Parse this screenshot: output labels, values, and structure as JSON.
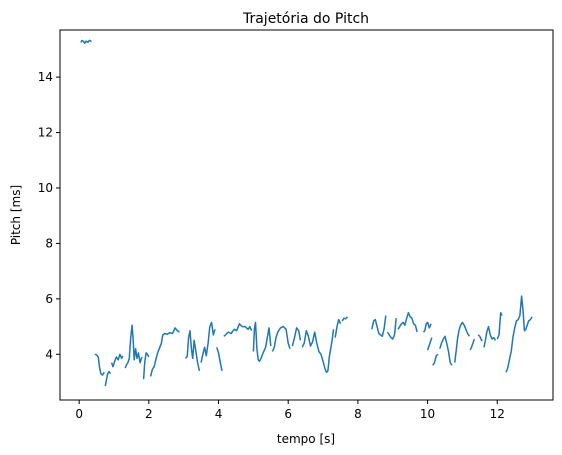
{
  "chart_data": {
    "type": "line",
    "title": "Trajetória do Pitch",
    "xlabel": "tempo [s]",
    "ylabel": "Pitch [ms]",
    "xlim": [
      -0.55,
      13.6
    ],
    "ylim": [
      2.35,
      15.7
    ],
    "xticks": [
      0,
      2,
      4,
      6,
      8,
      10,
      12
    ],
    "yticks": [
      4,
      6,
      8,
      10,
      12,
      14
    ],
    "grid": false,
    "line_color": "#1f77b4",
    "segments": [
      [
        [
          0.05,
          15.25
        ],
        [
          0.08,
          15.32
        ],
        [
          0.12,
          15.3
        ],
        [
          0.16,
          15.22
        ],
        [
          0.2,
          15.3
        ],
        [
          0.25,
          15.26
        ],
        [
          0.3,
          15.33
        ],
        [
          0.35,
          15.28
        ]
      ],
      [
        [
          0.45,
          4.0
        ],
        [
          0.5,
          3.98
        ],
        [
          0.55,
          3.9
        ],
        [
          0.58,
          3.55
        ],
        [
          0.62,
          3.3
        ],
        [
          0.67,
          3.25
        ],
        [
          0.72,
          3.35
        ]
      ],
      [
        [
          0.75,
          2.85
        ],
        [
          0.78,
          3.05
        ],
        [
          0.82,
          3.3
        ],
        [
          0.86,
          3.38
        ],
        [
          0.9,
          3.3
        ]
      ],
      [
        [
          0.93,
          3.7
        ],
        [
          0.97,
          3.55
        ],
        [
          1.02,
          3.75
        ],
        [
          1.07,
          3.9
        ],
        [
          1.12,
          3.8
        ],
        [
          1.17,
          4.0
        ],
        [
          1.22,
          3.85
        ],
        [
          1.25,
          3.95
        ]
      ],
      [
        [
          1.32,
          3.5
        ],
        [
          1.36,
          3.62
        ],
        [
          1.4,
          3.7
        ],
        [
          1.44,
          3.85
        ],
        [
          1.48,
          4.6
        ],
        [
          1.52,
          5.05
        ],
        [
          1.55,
          4.5
        ],
        [
          1.58,
          3.8
        ],
        [
          1.62,
          4.2
        ],
        [
          1.66,
          3.85
        ],
        [
          1.7,
          4.05
        ],
        [
          1.75,
          3.7
        ],
        [
          1.8,
          3.9
        ]
      ],
      [
        [
          1.85,
          3.1
        ],
        [
          1.88,
          3.7
        ],
        [
          1.92,
          4.05
        ],
        [
          1.96,
          4.0
        ],
        [
          2.0,
          3.9
        ]
      ],
      [
        [
          2.05,
          3.2
        ],
        [
          2.1,
          3.45
        ],
        [
          2.15,
          3.55
        ],
        [
          2.2,
          3.8
        ],
        [
          2.25,
          4.05
        ],
        [
          2.3,
          4.2
        ],
        [
          2.36,
          4.4
        ],
        [
          2.4,
          4.7
        ],
        [
          2.46,
          4.75
        ],
        [
          2.52,
          4.72
        ],
        [
          2.6,
          4.78
        ],
        [
          2.68,
          4.75
        ],
        [
          2.75,
          4.95
        ],
        [
          2.82,
          4.85
        ],
        [
          2.88,
          4.8
        ]
      ],
      [
        [
          3.05,
          3.85
        ],
        [
          3.1,
          3.92
        ],
        [
          3.14,
          4.6
        ],
        [
          3.18,
          4.85
        ],
        [
          3.22,
          4.2
        ],
        [
          3.26,
          3.85
        ],
        [
          3.3,
          4.5
        ],
        [
          3.35,
          4.1
        ],
        [
          3.4,
          3.7
        ],
        [
          3.45,
          3.4
        ]
      ],
      [
        [
          3.5,
          3.7
        ],
        [
          3.55,
          4.0
        ],
        [
          3.6,
          4.25
        ],
        [
          3.65,
          3.95
        ],
        [
          3.7,
          4.4
        ],
        [
          3.75,
          5.0
        ],
        [
          3.8,
          5.15
        ],
        [
          3.85,
          4.7
        ],
        [
          3.9,
          4.9
        ]
      ],
      [
        [
          3.95,
          4.25
        ],
        [
          4.0,
          4.05
        ],
        [
          4.05,
          3.7
        ],
        [
          4.1,
          3.4
        ]
      ],
      [
        [
          4.15,
          4.65
        ],
        [
          4.2,
          4.7
        ],
        [
          4.28,
          4.8
        ],
        [
          4.36,
          4.75
        ],
        [
          4.45,
          4.9
        ],
        [
          4.52,
          4.85
        ],
        [
          4.6,
          5.1
        ],
        [
          4.68,
          5.0
        ],
        [
          4.76,
          5.0
        ],
        [
          4.85,
          4.9
        ],
        [
          4.9,
          5.0
        ],
        [
          4.95,
          4.85
        ]
      ],
      [
        [
          5.0,
          4.1
        ],
        [
          5.03,
          4.9
        ],
        [
          5.06,
          5.15
        ],
        [
          5.1,
          4.2
        ],
        [
          5.14,
          3.8
        ],
        [
          5.18,
          3.75
        ],
        [
          5.22,
          3.85
        ],
        [
          5.28,
          4.05
        ],
        [
          5.35,
          4.25
        ],
        [
          5.4,
          4.6
        ],
        [
          5.45,
          4.95
        ],
        [
          5.5,
          4.3
        ]
      ],
      [
        [
          5.55,
          4.1
        ],
        [
          5.6,
          4.25
        ],
        [
          5.65,
          4.6
        ],
        [
          5.7,
          4.8
        ],
        [
          5.78,
          4.95
        ],
        [
          5.86,
          5.0
        ],
        [
          5.94,
          4.9
        ],
        [
          6.0,
          4.4
        ],
        [
          6.05,
          4.2
        ]
      ],
      [
        [
          6.12,
          4.3
        ],
        [
          6.18,
          4.6
        ],
        [
          6.24,
          4.95
        ],
        [
          6.3,
          4.85
        ],
        [
          6.35,
          4.5
        ]
      ],
      [
        [
          6.4,
          4.25
        ],
        [
          6.46,
          4.4
        ],
        [
          6.52,
          4.85
        ],
        [
          6.58,
          4.65
        ],
        [
          6.64,
          4.3
        ],
        [
          6.7,
          4.45
        ],
        [
          6.76,
          4.8
        ],
        [
          6.82,
          4.4
        ],
        [
          6.88,
          4.1
        ],
        [
          6.94,
          4.0
        ],
        [
          7.0,
          3.75
        ],
        [
          7.05,
          3.5
        ],
        [
          7.1,
          3.35
        ],
        [
          7.14,
          3.4
        ],
        [
          7.18,
          3.9
        ],
        [
          7.22,
          4.2
        ],
        [
          7.26,
          4.5
        ],
        [
          7.3,
          4.9
        ]
      ],
      [
        [
          7.35,
          4.6
        ],
        [
          7.4,
          5.0
        ],
        [
          7.45,
          5.25
        ],
        [
          7.5,
          5.1
        ]
      ],
      [
        [
          7.55,
          5.2
        ],
        [
          7.6,
          5.3
        ],
        [
          7.65,
          5.28
        ],
        [
          7.7,
          5.35
        ]
      ],
      [
        [
          8.4,
          4.9
        ],
        [
          8.45,
          5.2
        ],
        [
          8.5,
          5.25
        ],
        [
          8.55,
          5.0
        ],
        [
          8.6,
          4.75
        ],
        [
          8.65,
          4.7
        ],
        [
          8.7,
          4.65
        ],
        [
          8.75,
          4.9
        ],
        [
          8.8,
          5.4
        ]
      ],
      [
        [
          8.85,
          4.8
        ],
        [
          8.9,
          4.7
        ],
        [
          8.95,
          4.6
        ],
        [
          9.0,
          4.55
        ],
        [
          9.05,
          4.7
        ],
        [
          9.1,
          5.3
        ]
      ],
      [
        [
          9.15,
          4.9
        ],
        [
          9.2,
          5.0
        ],
        [
          9.25,
          5.1
        ],
        [
          9.3,
          5.15
        ],
        [
          9.35,
          5.05
        ],
        [
          9.4,
          5.3
        ],
        [
          9.45,
          5.5
        ],
        [
          9.5,
          5.35
        ],
        [
          9.55,
          5.3
        ],
        [
          9.6,
          5.1
        ],
        [
          9.65,
          5.05
        ],
        [
          9.7,
          4.8
        ]
      ],
      [
        [
          9.88,
          4.8
        ],
        [
          9.92,
          4.85
        ],
        [
          9.96,
          5.1
        ],
        [
          10.0,
          5.15
        ],
        [
          10.05,
          4.95
        ],
        [
          10.1,
          5.1
        ]
      ],
      [
        [
          10.0,
          4.15
        ],
        [
          10.04,
          4.3
        ],
        [
          10.08,
          4.45
        ],
        [
          10.12,
          4.6
        ]
      ],
      [
        [
          10.15,
          3.6
        ],
        [
          10.2,
          3.7
        ],
        [
          10.25,
          3.95
        ],
        [
          10.3,
          4.0
        ]
      ],
      [
        [
          10.35,
          4.2
        ],
        [
          10.4,
          4.4
        ],
        [
          10.45,
          4.55
        ],
        [
          10.5,
          4.65
        ],
        [
          10.55,
          4.4
        ],
        [
          10.6,
          4.1
        ],
        [
          10.65,
          3.7
        ],
        [
          10.7,
          3.6
        ]
      ],
      [
        [
          10.78,
          3.7
        ],
        [
          10.82,
          4.1
        ],
        [
          10.86,
          4.55
        ],
        [
          10.9,
          4.85
        ],
        [
          10.95,
          5.05
        ],
        [
          11.0,
          5.15
        ],
        [
          11.05,
          5.05
        ],
        [
          11.1,
          4.9
        ],
        [
          11.15,
          4.75
        ],
        [
          11.2,
          4.65
        ]
      ],
      [
        [
          11.22,
          4.15
        ],
        [
          11.26,
          4.25
        ],
        [
          11.3,
          4.4
        ],
        [
          11.34,
          4.55
        ]
      ],
      [
        [
          11.45,
          4.7
        ],
        [
          11.5,
          4.65
        ],
        [
          11.55,
          4.5
        ],
        [
          11.58,
          4.5
        ]
      ],
      [
        [
          11.62,
          4.25
        ],
        [
          11.66,
          4.5
        ],
        [
          11.7,
          4.8
        ],
        [
          11.75,
          5.0
        ],
        [
          11.8,
          4.7
        ],
        [
          11.85,
          4.55
        ],
        [
          11.9,
          4.6
        ],
        [
          11.95,
          4.5
        ]
      ],
      [
        [
          12.0,
          4.55
        ],
        [
          12.05,
          4.7
        ],
        [
          12.1,
          5.5
        ],
        [
          12.14,
          5.4
        ]
      ],
      [
        [
          12.25,
          3.35
        ],
        [
          12.3,
          3.5
        ],
        [
          12.35,
          3.8
        ],
        [
          12.4,
          4.1
        ],
        [
          12.45,
          4.6
        ],
        [
          12.5,
          4.95
        ],
        [
          12.55,
          5.2
        ],
        [
          12.6,
          5.25
        ],
        [
          12.65,
          5.4
        ],
        [
          12.7,
          6.1
        ],
        [
          12.74,
          5.6
        ],
        [
          12.78,
          4.85
        ],
        [
          12.82,
          4.9
        ],
        [
          12.86,
          5.05
        ],
        [
          12.9,
          5.2
        ],
        [
          12.95,
          5.25
        ],
        [
          13.0,
          5.35
        ]
      ]
    ]
  }
}
